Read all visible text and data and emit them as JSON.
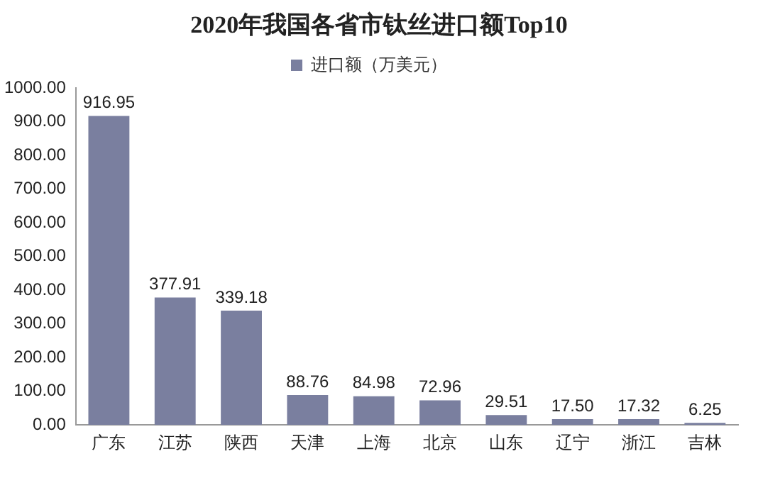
{
  "chart_data": {
    "type": "bar",
    "title": "2020年我国各省市钛丝进口额Top10",
    "categories": [
      "广东",
      "江苏",
      "陕西",
      "天津",
      "上海",
      "北京",
      "山东",
      "辽宁",
      "浙江",
      "吉林"
    ],
    "series": [
      {
        "name": "进口额（万美元）",
        "color": "#7a7f9f",
        "values": [
          916.95,
          377.91,
          339.18,
          88.76,
          84.98,
          72.96,
          29.51,
          17.5,
          17.32,
          6.25
        ],
        "value_labels": [
          "916.95",
          "377.91",
          "339.18",
          "88.76",
          "84.98",
          "72.96",
          "29.51",
          "17.50",
          "17.32",
          "6.25"
        ]
      }
    ],
    "ylim": [
      0,
      1000
    ],
    "yticks": [
      {
        "value": 0,
        "label": "0.00"
      },
      {
        "value": 100,
        "label": "100.00"
      },
      {
        "value": 200,
        "label": "200.00"
      },
      {
        "value": 300,
        "label": "300.00"
      },
      {
        "value": 400,
        "label": "400.00"
      },
      {
        "value": 500,
        "label": "500.00"
      },
      {
        "value": 600,
        "label": "600.00"
      },
      {
        "value": 700,
        "label": "700.00"
      },
      {
        "value": 800,
        "label": "800.00"
      },
      {
        "value": 900,
        "label": "900.00"
      },
      {
        "value": 1000,
        "label": "1000.00"
      }
    ],
    "grid": false,
    "legend": "top"
  }
}
